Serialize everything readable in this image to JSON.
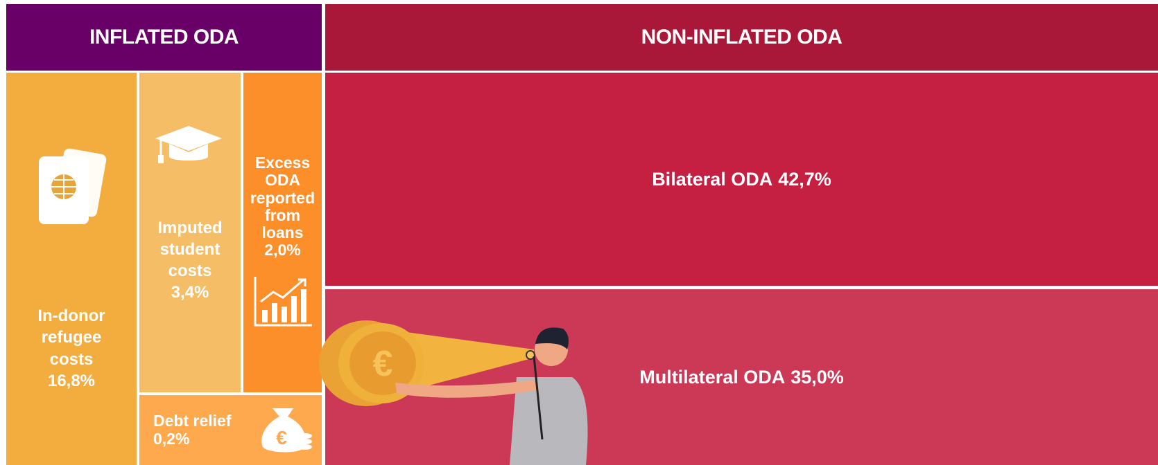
{
  "header": {
    "inflated": "INFLATED ODA",
    "non_inflated": "NON-INFLATED ODA"
  },
  "inflated": [
    {
      "label": "In-donor refugee costs",
      "value": "16,8%"
    },
    {
      "label": "Imputed student costs",
      "value": "3,4%"
    },
    {
      "label": "Excess ODA reported from loans",
      "value": "2,0%"
    },
    {
      "label": "Debt relief",
      "value": "0,2%"
    }
  ],
  "non_inflated": [
    {
      "label": "Bilateral ODA",
      "value": "42,7%"
    },
    {
      "label": "Multilateral ODA",
      "value": "35,0%"
    }
  ]
}
